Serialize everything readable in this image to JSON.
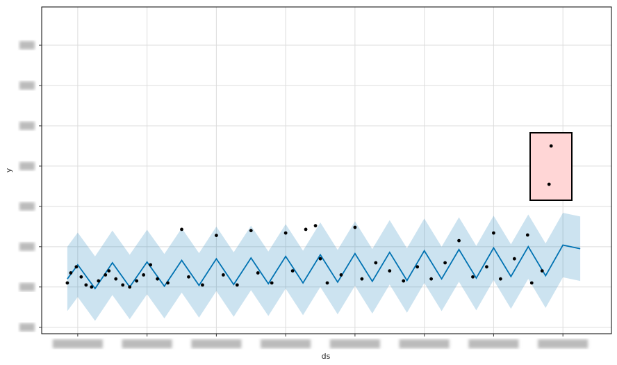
{
  "chart_data": {
    "type": "forecast",
    "xlabel": "ds",
    "ylabel": "y",
    "xlim": [
      -0.52,
      7.7
    ],
    "xticks": [
      0,
      1,
      2,
      3,
      4,
      5,
      6,
      7
    ],
    "ylim": [
      -1.16,
      6.95
    ],
    "yticks": [
      -1,
      0,
      1,
      2,
      3,
      4,
      5,
      6
    ],
    "grid": true,
    "line_color": "#0072b2",
    "band_color": "#0072b2",
    "point_color": "#000000",
    "x": [
      -0.15,
      0,
      0.25,
      0.5,
      0.75,
      1,
      1.25,
      1.5,
      1.75,
      2,
      2.25,
      2.5,
      2.75,
      3,
      3.25,
      3.5,
      3.75,
      4,
      4.25,
      4.5,
      4.75,
      5,
      5.25,
      5.5,
      5.75,
      6,
      6.25,
      6.5,
      6.75,
      7,
      7.25
    ],
    "yhat": [
      0.2,
      0.55,
      -0.04,
      0.6,
      0,
      0.62,
      0.02,
      0.66,
      0.04,
      0.7,
      0.06,
      0.72,
      0.08,
      0.76,
      0.1,
      0.8,
      0.12,
      0.83,
      0.14,
      0.86,
      0.16,
      0.9,
      0.2,
      0.93,
      0.22,
      0.97,
      0.26,
      1.0,
      0.28,
      1.04,
      0.95
    ],
    "yhat_upper": [
      1.0,
      1.35,
      0.76,
      1.4,
      0.8,
      1.42,
      0.82,
      1.46,
      0.84,
      1.5,
      0.86,
      1.52,
      0.88,
      1.56,
      0.9,
      1.6,
      0.92,
      1.63,
      0.94,
      1.66,
      0.96,
      1.7,
      1.0,
      1.73,
      1.02,
      1.77,
      1.06,
      1.8,
      1.08,
      1.84,
      1.75
    ],
    "yhat_lower": [
      -0.6,
      -0.25,
      -0.84,
      -0.2,
      -0.8,
      -0.18,
      -0.78,
      -0.14,
      -0.76,
      -0.1,
      -0.74,
      -0.08,
      -0.72,
      -0.04,
      -0.7,
      0,
      -0.68,
      0.03,
      -0.66,
      0.06,
      -0.64,
      0.1,
      -0.6,
      0.13,
      -0.58,
      0.17,
      -0.54,
      0.2,
      -0.52,
      0.24,
      0.15
    ],
    "points": {
      "x": [
        -0.15,
        -0.1,
        -0.02,
        0.05,
        0.12,
        0.2,
        0.3,
        0.4,
        0.45,
        0.55,
        0.65,
        0.75,
        0.85,
        0.95,
        1.05,
        1.15,
        1.3,
        1.5,
        1.6,
        1.8,
        2.0,
        2.1,
        2.3,
        2.5,
        2.6,
        2.8,
        3.0,
        3.1,
        3.29,
        3.43,
        3.5,
        3.6,
        3.8,
        4.0,
        4.1,
        4.3,
        4.5,
        4.7,
        4.9,
        5.1,
        5.3,
        5.5,
        5.7,
        5.9,
        6.0,
        6.1,
        6.3,
        6.49,
        6.55,
        6.7,
        6.8,
        6.83
      ],
      "y": [
        0.1,
        0.35,
        0.5,
        0.25,
        0.05,
        0.0,
        0.15,
        0.3,
        0.4,
        0.2,
        0.05,
        0.0,
        0.15,
        0.3,
        0.55,
        0.2,
        0.1,
        1.43,
        0.25,
        0.05,
        1.28,
        0.3,
        0.05,
        1.4,
        0.35,
        0.1,
        1.34,
        0.4,
        1.43,
        1.52,
        0.7,
        0.1,
        0.3,
        1.48,
        0.2,
        0.6,
        0.4,
        0.15,
        0.5,
        0.2,
        0.6,
        1.15,
        0.25,
        0.5,
        1.34,
        0.2,
        0.7,
        1.29,
        0.1,
        0.4,
        2.55,
        3.5
      ]
    }
  }
}
